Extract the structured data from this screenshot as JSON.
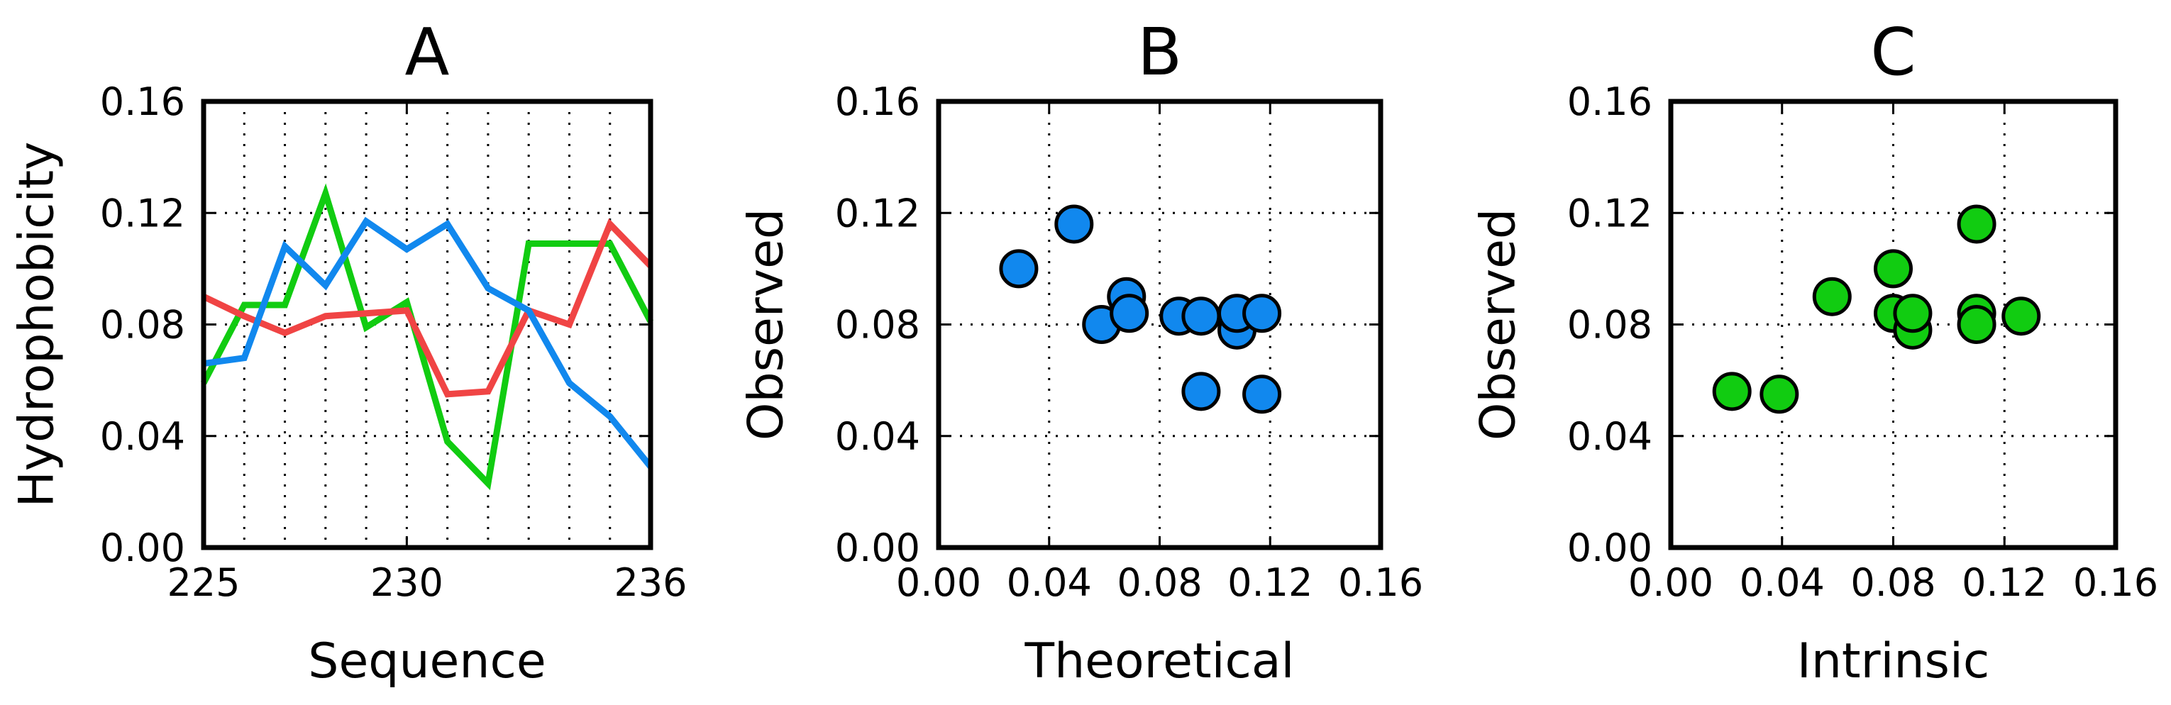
{
  "colors": {
    "green": "#11cc11",
    "red": "#f04444",
    "blue": "#1188ee"
  },
  "chart_data": [
    {
      "id": "A",
      "type": "line",
      "title": "A",
      "xlabel": "Sequence",
      "ylabel": "Hydrophobicity",
      "xlim": [
        225,
        236
      ],
      "ylim": [
        0,
        0.16
      ],
      "xticks": [
        225,
        230,
        236
      ],
      "xtick_labels": [
        "225",
        "230",
        "236"
      ],
      "yticks": [
        0,
        0.04,
        0.08,
        0.12,
        0.16
      ],
      "ytick_labels": [
        "0.00",
        "0.04",
        "0.08",
        "0.12",
        "0.16"
      ],
      "xgrid": [
        226,
        227,
        228,
        229,
        230,
        231,
        232,
        233,
        234,
        235
      ],
      "grid": true,
      "x": [
        225,
        226,
        227,
        228,
        229,
        230,
        231,
        232,
        233,
        234,
        235,
        236
      ],
      "series": [
        {
          "color": "green",
          "values": [
            0.059,
            0.087,
            0.087,
            0.127,
            0.079,
            0.088,
            0.038,
            0.023,
            0.109,
            0.109,
            0.109,
            0.081
          ]
        },
        {
          "color": "red",
          "values": [
            0.09,
            0.083,
            0.077,
            0.083,
            0.084,
            0.085,
            0.055,
            0.056,
            0.085,
            0.08,
            0.116,
            0.101
          ]
        },
        {
          "color": "blue",
          "values": [
            0.066,
            0.068,
            0.108,
            0.094,
            0.117,
            0.107,
            0.116,
            0.093,
            0.085,
            0.059,
            0.047,
            0.029
          ]
        }
      ]
    },
    {
      "id": "B",
      "type": "scatter",
      "title": "B",
      "xlabel": "Theoretical",
      "ylabel": "Observed",
      "xlim": [
        0,
        0.16
      ],
      "ylim": [
        0,
        0.16
      ],
      "xticks": [
        0,
        0.04,
        0.08,
        0.12,
        0.16
      ],
      "xtick_labels": [
        "0.00",
        "0.04",
        "0.08",
        "0.12",
        "0.16"
      ],
      "yticks": [
        0,
        0.04,
        0.08,
        0.12,
        0.16
      ],
      "ytick_labels": [
        "0.00",
        "0.04",
        "0.08",
        "0.12",
        "0.16"
      ],
      "grid": true,
      "color": "blue",
      "points": [
        [
          0.029,
          0.1
        ],
        [
          0.049,
          0.116
        ],
        [
          0.059,
          0.08
        ],
        [
          0.068,
          0.09
        ],
        [
          0.069,
          0.084
        ],
        [
          0.087,
          0.083
        ],
        [
          0.095,
          0.083
        ],
        [
          0.095,
          0.056
        ],
        [
          0.108,
          0.078
        ],
        [
          0.108,
          0.084
        ],
        [
          0.117,
          0.084
        ],
        [
          0.117,
          0.055
        ]
      ]
    },
    {
      "id": "C",
      "type": "scatter",
      "title": "C",
      "xlabel": "Intrinsic",
      "ylabel": "Observed",
      "xlim": [
        0,
        0.16
      ],
      "ylim": [
        0,
        0.16
      ],
      "xticks": [
        0,
        0.04,
        0.08,
        0.12,
        0.16
      ],
      "xtick_labels": [
        "0.00",
        "0.04",
        "0.08",
        "0.12",
        "0.16"
      ],
      "yticks": [
        0,
        0.04,
        0.08,
        0.12,
        0.16
      ],
      "ytick_labels": [
        "0.00",
        "0.04",
        "0.08",
        "0.12",
        "0.16"
      ],
      "grid": true,
      "color": "green",
      "points": [
        [
          0.022,
          0.056
        ],
        [
          0.039,
          0.055
        ],
        [
          0.058,
          0.09
        ],
        [
          0.08,
          0.1
        ],
        [
          0.08,
          0.084
        ],
        [
          0.087,
          0.078
        ],
        [
          0.087,
          0.084
        ],
        [
          0.11,
          0.116
        ],
        [
          0.11,
          0.084
        ],
        [
          0.11,
          0.08
        ],
        [
          0.126,
          0.083
        ]
      ]
    }
  ]
}
